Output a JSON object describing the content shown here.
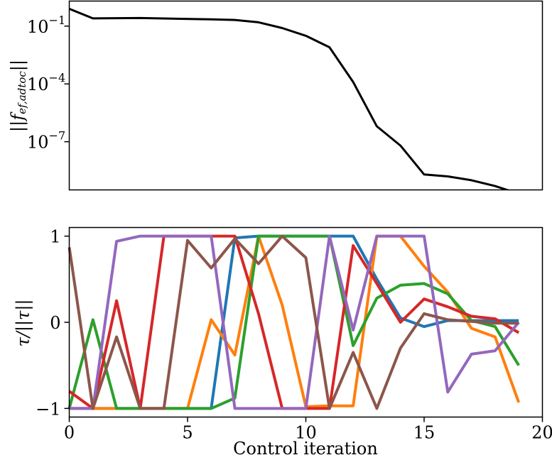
{
  "chart_data": [
    {
      "type": "line",
      "title": "",
      "xlabel": "",
      "ylabel": "||f_ef,adtoc||",
      "ylabel_parts": {
        "prefix": "||",
        "symbol": "f",
        "subscript": "ef,adtoc",
        "suffix": "||"
      },
      "yscale": "log",
      "xlim": [
        0,
        20
      ],
      "ylim_exp": [
        -9.5,
        0.3
      ],
      "ytick_exponents": [
        -1,
        -4,
        -7
      ],
      "ytick_labels": [
        "10",
        "10",
        "10"
      ],
      "ytick_label_exponents": [
        "−1",
        "−4",
        "−7"
      ],
      "grid": false,
      "series": [
        {
          "color": "#000000",
          "x": [
            0,
            1,
            3,
            6,
            7,
            8,
            9,
            10,
            11,
            12,
            13,
            14,
            15,
            16,
            17,
            18,
            19,
            20
          ],
          "exp": [
            -0.1,
            -0.6,
            -0.58,
            -0.65,
            -0.68,
            -0.8,
            -1.1,
            -1.5,
            -2.1,
            -3.9,
            -6.2,
            -7.2,
            -8.7,
            -8.8,
            -9.0,
            -9.3,
            -9.7,
            -11.5
          ]
        }
      ]
    },
    {
      "type": "line",
      "title": "",
      "xlabel": "Control iteration",
      "ylabel": "τ/||τ||",
      "xlim": [
        0,
        20
      ],
      "ylim": [
        -1.1,
        1.1
      ],
      "xticks": [
        0,
        5,
        10,
        15,
        20
      ],
      "xtick_labels": [
        "0",
        "5",
        "10",
        "15",
        "20"
      ],
      "yticks": [
        1,
        0,
        -1
      ],
      "ytick_labels": [
        "1",
        "0",
        "−1"
      ],
      "grid": false,
      "series": [
        {
          "color": "#1f77b4",
          "x": [
            0,
            1,
            2,
            3,
            4,
            5,
            6,
            7,
            8,
            9,
            10,
            11,
            12,
            13,
            14,
            15,
            16,
            17,
            18,
            19
          ],
          "values": [
            -1,
            -1,
            -1,
            -1,
            -1,
            -1,
            -1,
            0.98,
            1,
            1,
            1,
            1,
            1,
            0.5,
            0.05,
            -0.05,
            0.02,
            0.02,
            0.02,
            0.02
          ]
        },
        {
          "color": "#ff7f0e",
          "x": [
            0,
            1,
            2,
            3,
            4,
            5,
            6,
            7,
            8,
            9,
            10,
            11,
            12,
            13,
            14,
            15,
            16,
            17,
            18,
            19
          ],
          "values": [
            -1,
            -1,
            -1,
            -1,
            -1,
            -1,
            0.03,
            -0.38,
            1,
            0.2,
            -0.98,
            -0.97,
            -0.97,
            1,
            1,
            0.65,
            0.35,
            -0.07,
            -0.17,
            -0.93
          ]
        },
        {
          "color": "#2ca02c",
          "x": [
            0,
            1,
            2,
            3,
            4,
            5,
            6,
            7,
            8,
            9,
            10,
            11,
            12,
            13,
            14,
            15,
            16,
            17,
            18,
            19
          ],
          "values": [
            -1,
            0.03,
            -1,
            -1,
            -1,
            -1,
            -1,
            -0.88,
            1,
            1,
            1,
            1,
            -0.27,
            0.28,
            0.43,
            0.45,
            0.33,
            0.02,
            -0.05,
            -0.5
          ]
        },
        {
          "color": "#d62728",
          "x": [
            0,
            1,
            2,
            3,
            4,
            5,
            6,
            7,
            8,
            9,
            10,
            11,
            12,
            13,
            14,
            15,
            16,
            17,
            18,
            19
          ],
          "values": [
            -0.8,
            -1,
            0.25,
            -1,
            1,
            1,
            1,
            1,
            0.1,
            -1,
            -1,
            -1,
            0.89,
            0.45,
            0,
            0.27,
            0.18,
            0.07,
            0.04,
            -0.12
          ]
        },
        {
          "color": "#9467bd",
          "x": [
            0,
            1,
            2,
            3,
            4,
            5,
            6,
            7,
            8,
            9,
            10,
            11,
            12,
            13,
            14,
            15,
            16,
            17,
            18,
            19
          ],
          "values": [
            -1,
            -1,
            0.94,
            1,
            1,
            1,
            1,
            -1,
            -1,
            -1,
            -1,
            1,
            -0.09,
            1,
            1,
            1,
            -0.81,
            -0.37,
            -0.33,
            0
          ]
        },
        {
          "color": "#8c564b",
          "x": [
            0,
            1,
            2,
            3,
            4,
            5,
            6,
            7,
            8,
            9,
            10,
            11,
            12,
            13,
            14,
            15,
            16,
            17,
            18,
            19
          ],
          "values": [
            0.87,
            -1,
            -0.17,
            -1,
            -1,
            0.95,
            0.63,
            0.97,
            0.68,
            1,
            0.75,
            -1,
            -0.35,
            -1,
            -0.3,
            0.1,
            0.03,
            0.01,
            -0.01,
            -0.01
          ]
        }
      ]
    }
  ]
}
